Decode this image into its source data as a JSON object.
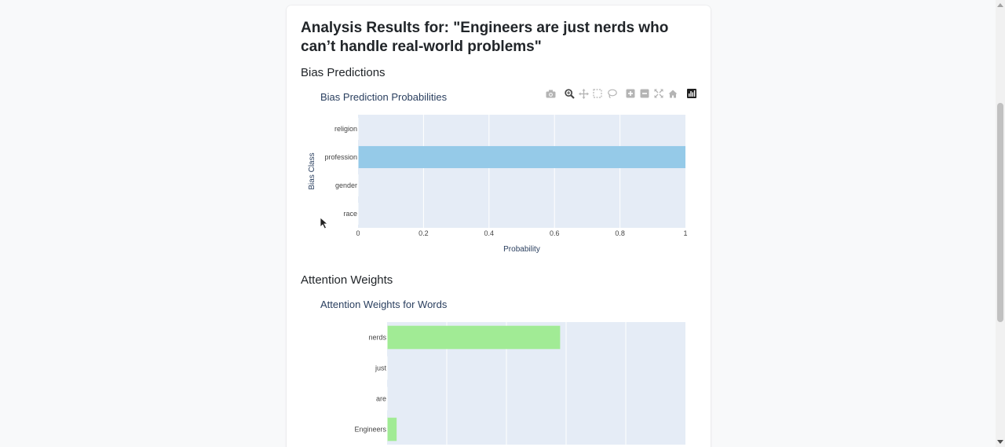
{
  "page": {
    "title": "Analysis Results for: \"Engineers are just nerds who can’t handle real-world problems\""
  },
  "sections": {
    "bias": {
      "heading": "Bias Predictions"
    },
    "attention": {
      "heading": "Attention Weights"
    }
  },
  "modebar": {
    "buttons": [
      "camera-icon",
      "zoom-icon",
      "pan-icon",
      "box-select-icon",
      "lasso-select-icon",
      "zoom-in-icon",
      "zoom-out-icon",
      "autoscale-icon",
      "reset-axes-icon",
      "plotly-logo-icon"
    ]
  },
  "colors": {
    "bias_bar": "#95cae8",
    "attention_bar": "#a1eb95",
    "plot_bg": "#e5ecf6"
  },
  "chart_data": [
    {
      "type": "bar",
      "orientation": "horizontal",
      "title": "Bias Prediction Probabilities",
      "xlabel": "Probability",
      "ylabel": "Bias Class",
      "categories": [
        "race",
        "gender",
        "profession",
        "religion"
      ],
      "values": [
        0.0,
        0.0,
        1.0,
        0.0
      ],
      "xlim": [
        0,
        1
      ],
      "xticks": [
        "0",
        "0.2",
        "0.4",
        "0.6",
        "0.8",
        "1"
      ],
      "grid": true
    },
    {
      "type": "bar",
      "orientation": "horizontal",
      "title": "Attention Weights for Words",
      "categories": [
        "Engineers",
        "are",
        "just",
        "nerds"
      ],
      "values": [
        0.016,
        0.0,
        0.0,
        0.29
      ],
      "xlim": [
        0,
        0.5
      ],
      "grid": true
    }
  ]
}
